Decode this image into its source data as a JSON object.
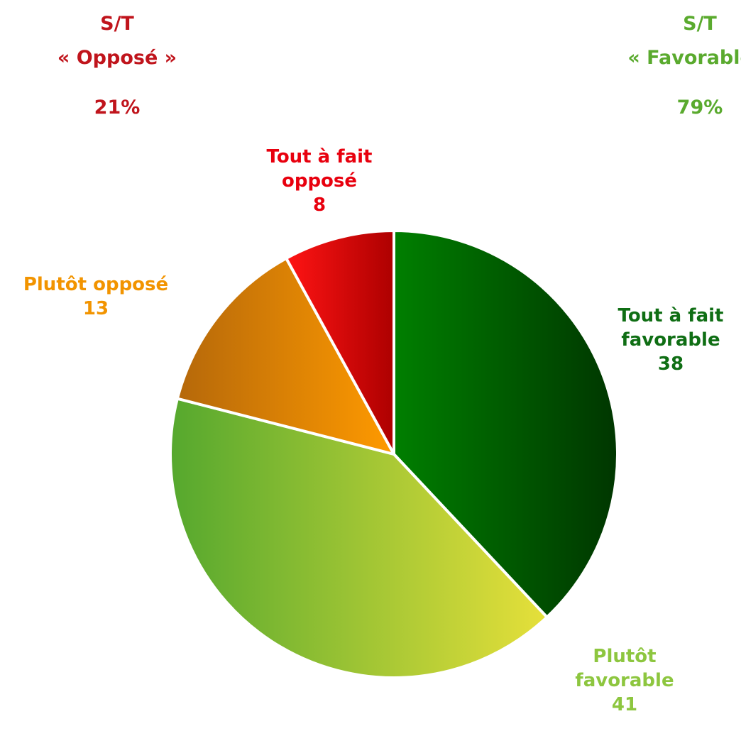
{
  "chart_data": {
    "type": "pie",
    "categories": [
      "Tout à fait favorable",
      "Plutôt favorable",
      "Plutôt opposé",
      "Tout à fait opposé"
    ],
    "values": [
      38,
      41,
      13,
      8
    ],
    "colors": [
      [
        "#007f00",
        "#003600"
      ],
      [
        "#55a82e",
        "#e6e03a"
      ],
      [
        "#b5680a",
        "#ff9a00"
      ],
      [
        "#ff1414",
        "#ad0000"
      ]
    ],
    "label_colors": [
      "#0f6e14",
      "#8dc63f",
      "#f29400",
      "#e8000e"
    ],
    "annotations": [
      {
        "lines": [
          "S/T",
          "« Opposé »",
          "21%"
        ],
        "color": "#c0141c"
      },
      {
        "lines": [
          "S/T",
          "« Favorable »",
          "79%"
        ],
        "color": "#5aaa2e"
      }
    ]
  }
}
